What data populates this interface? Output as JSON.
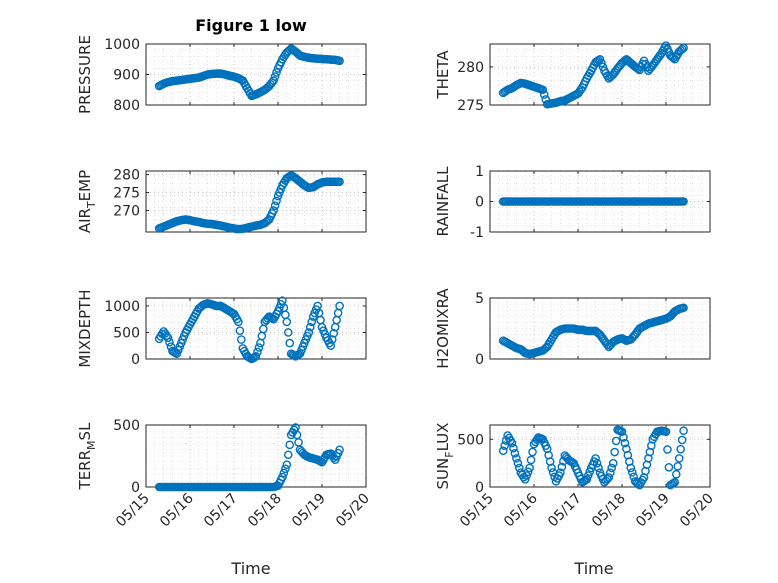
{
  "figure": {
    "title": "Figure 1 low",
    "xlabel": "Time",
    "xtick_labels": [
      "05/15",
      "05/16",
      "05/17",
      "05/18",
      "05/19",
      "05/20"
    ]
  },
  "chart_data": [
    {
      "type": "scatter",
      "ylabel": "PRESSURE",
      "ylabel_sub": "",
      "ylim": [
        800,
        1000
      ],
      "yticks": [
        800,
        900,
        1000
      ],
      "grid": true,
      "color": "#0072bd",
      "x": [
        0.3,
        0.4,
        0.5,
        0.6,
        0.7,
        0.8,
        0.9,
        1.0,
        1.1,
        1.2,
        1.3,
        1.4,
        1.5,
        1.6,
        1.7,
        1.8,
        1.9,
        2.0,
        2.1,
        2.2,
        2.3,
        2.4,
        2.5,
        2.6,
        2.7,
        2.8,
        2.9,
        3.0,
        3.1,
        3.2,
        3.3,
        3.4,
        3.5,
        3.6,
        3.7,
        3.8,
        3.9,
        4.0,
        4.1,
        4.2,
        4.3,
        4.4
      ],
      "y": [
        862,
        870,
        875,
        878,
        880,
        882,
        884,
        886,
        888,
        890,
        895,
        900,
        902,
        903,
        903,
        900,
        896,
        893,
        888,
        880,
        855,
        830,
        835,
        842,
        850,
        862,
        880,
        920,
        950,
        972,
        985,
        975,
        962,
        958,
        955,
        953,
        952,
        951,
        950,
        949,
        948,
        945
      ]
    },
    {
      "type": "scatter",
      "ylabel": "THETA",
      "ylabel_sub": "",
      "ylim": [
        275,
        283
      ],
      "yticks": [
        275,
        280
      ],
      "grid": true,
      "color": "#0072bd",
      "x": [
        0.3,
        0.4,
        0.5,
        0.6,
        0.7,
        0.8,
        0.9,
        1.0,
        1.1,
        1.2,
        1.3,
        1.4,
        1.5,
        1.6,
        1.7,
        1.8,
        1.9,
        2.0,
        2.1,
        2.2,
        2.3,
        2.4,
        2.5,
        2.6,
        2.7,
        2.8,
        2.9,
        3.0,
        3.1,
        3.2,
        3.3,
        3.4,
        3.5,
        3.6,
        3.7,
        3.8,
        3.9,
        4.0,
        4.1,
        4.2,
        4.3,
        4.4
      ],
      "y": [
        276.6,
        277.0,
        277.2,
        277.6,
        277.9,
        277.8,
        277.6,
        277.4,
        277.2,
        277.0,
        275.1,
        275.2,
        275.3,
        275.5,
        275.6,
        275.9,
        276.2,
        276.5,
        277.3,
        278.5,
        279.5,
        280.6,
        281.0,
        279.5,
        278.5,
        279.0,
        279.8,
        280.5,
        281.0,
        280.5,
        280.0,
        279.6,
        280.8,
        279.5,
        280.2,
        281.0,
        281.8,
        282.8,
        281.5,
        281.0,
        282.0,
        282.5
      ]
    },
    {
      "type": "scatter",
      "ylabel": "AIR",
      "ylabel_sub": "T",
      "ylabel_tail": "EMP",
      "ylim": [
        264,
        281
      ],
      "yticks": [
        270,
        275,
        280
      ],
      "grid": true,
      "color": "#0072bd",
      "x": [
        0.3,
        0.4,
        0.5,
        0.6,
        0.7,
        0.8,
        0.9,
        1.0,
        1.1,
        1.2,
        1.3,
        1.4,
        1.5,
        1.6,
        1.7,
        1.8,
        1.9,
        2.0,
        2.1,
        2.2,
        2.3,
        2.4,
        2.5,
        2.6,
        2.7,
        2.8,
        2.9,
        3.0,
        3.1,
        3.2,
        3.3,
        3.4,
        3.5,
        3.6,
        3.7,
        3.8,
        3.9,
        4.0,
        4.1,
        4.2,
        4.3,
        4.4
      ],
      "y": [
        265.0,
        265.5,
        266.0,
        266.5,
        267.0,
        267.3,
        267.5,
        267.3,
        267.0,
        266.8,
        266.5,
        266.3,
        266.2,
        266.0,
        265.8,
        265.5,
        265.2,
        265.0,
        264.8,
        264.9,
        265.2,
        265.5,
        265.8,
        266.0,
        266.5,
        267.5,
        270.0,
        274.0,
        277.0,
        279.0,
        279.8,
        279.0,
        278.0,
        277.0,
        276.3,
        276.5,
        277.3,
        277.8,
        278.0,
        278.0,
        278.0,
        278.0
      ]
    },
    {
      "type": "scatter",
      "ylabel": "RAINFALL",
      "ylabel_sub": "",
      "ylim": [
        -1,
        1
      ],
      "yticks": [
        -1,
        0,
        1
      ],
      "grid": true,
      "color": "#0072bd",
      "x": [
        0.3,
        0.4,
        0.5,
        0.6,
        0.7,
        0.8,
        0.9,
        1.0,
        1.1,
        1.2,
        1.3,
        1.4,
        1.5,
        1.6,
        1.7,
        1.8,
        1.9,
        2.0,
        2.1,
        2.2,
        2.3,
        2.4,
        2.5,
        2.6,
        2.7,
        2.8,
        2.9,
        3.0,
        3.1,
        3.2,
        3.3,
        3.4,
        3.5,
        3.6,
        3.7,
        3.8,
        3.9,
        4.0,
        4.1,
        4.2,
        4.3,
        4.4
      ],
      "y": [
        0,
        0,
        0,
        0,
        0,
        0,
        0,
        0,
        0,
        0,
        0,
        0,
        0,
        0,
        0,
        0,
        0,
        0,
        0,
        0,
        0,
        0,
        0,
        0,
        0,
        0,
        0,
        0,
        0,
        0,
        0,
        0,
        0,
        0,
        0,
        0,
        0,
        0,
        0,
        0,
        0,
        0
      ]
    },
    {
      "type": "scatter",
      "ylabel": "MIXDEPTH",
      "ylabel_sub": "",
      "ylim": [
        0,
        1150
      ],
      "yticks": [
        0,
        500,
        1000
      ],
      "grid": true,
      "color": "#0072bd",
      "x": [
        0.3,
        0.4,
        0.5,
        0.6,
        0.7,
        0.8,
        0.9,
        1.0,
        1.1,
        1.2,
        1.3,
        1.4,
        1.5,
        1.6,
        1.7,
        1.8,
        1.9,
        2.0,
        2.1,
        2.2,
        2.3,
        2.4,
        2.5,
        2.6,
        2.7,
        2.8,
        2.9,
        3.0,
        3.1,
        3.2,
        3.3,
        3.4,
        3.5,
        3.6,
        3.7,
        3.8,
        3.9,
        4.0,
        4.1,
        4.2,
        4.3,
        4.4
      ],
      "y": [
        380,
        520,
        400,
        150,
        100,
        300,
        500,
        650,
        800,
        950,
        1020,
        1050,
        1030,
        1000,
        1000,
        950,
        900,
        850,
        700,
        200,
        50,
        0,
        50,
        300,
        700,
        800,
        750,
        900,
        1100,
        700,
        100,
        50,
        100,
        300,
        500,
        800,
        1000,
        600,
        400,
        250,
        600,
        1000
      ]
    },
    {
      "type": "scatter",
      "ylabel": "H2OMIXRA",
      "ylabel_sub": "",
      "ylim": [
        0,
        5
      ],
      "yticks": [
        0,
        5
      ],
      "grid": true,
      "color": "#0072bd",
      "x": [
        0.3,
        0.4,
        0.5,
        0.6,
        0.7,
        0.8,
        0.9,
        1.0,
        1.1,
        1.2,
        1.3,
        1.4,
        1.5,
        1.6,
        1.7,
        1.8,
        1.9,
        2.0,
        2.1,
        2.2,
        2.3,
        2.4,
        2.5,
        2.6,
        2.7,
        2.8,
        2.9,
        3.0,
        3.1,
        3.2,
        3.3,
        3.4,
        3.5,
        3.6,
        3.7,
        3.8,
        3.9,
        4.0,
        4.1,
        4.2,
        4.3,
        4.4
      ],
      "y": [
        1.5,
        1.3,
        1.1,
        0.9,
        0.8,
        0.5,
        0.4,
        0.5,
        0.6,
        0.7,
        1.0,
        1.6,
        2.2,
        2.4,
        2.5,
        2.5,
        2.5,
        2.4,
        2.4,
        2.3,
        2.3,
        2.3,
        2.0,
        1.5,
        1.0,
        1.4,
        1.6,
        1.7,
        1.5,
        1.6,
        2.0,
        2.5,
        2.7,
        2.9,
        3.0,
        3.1,
        3.2,
        3.3,
        3.5,
        3.9,
        4.1,
        4.2
      ]
    },
    {
      "type": "scatter",
      "ylabel": "TERR",
      "ylabel_sub": "M",
      "ylabel_tail": "SL",
      "ylim": [
        0,
        500
      ],
      "yticks": [
        0,
        500
      ],
      "grid": true,
      "color": "#0072bd",
      "x": [
        0.3,
        0.4,
        0.5,
        0.6,
        0.7,
        0.8,
        0.9,
        1.0,
        1.1,
        1.2,
        1.3,
        1.4,
        1.5,
        1.6,
        1.7,
        1.8,
        1.9,
        2.0,
        2.1,
        2.2,
        2.3,
        2.4,
        2.5,
        2.6,
        2.7,
        2.8,
        2.9,
        3.0,
        3.1,
        3.2,
        3.3,
        3.4,
        3.5,
        3.6,
        3.7,
        3.8,
        3.9,
        4.0,
        4.1,
        4.2,
        4.3,
        4.4
      ],
      "y": [
        0,
        0,
        0,
        0,
        0,
        0,
        0,
        0,
        0,
        0,
        0,
        0,
        0,
        0,
        0,
        0,
        0,
        0,
        0,
        0,
        0,
        0,
        0,
        0,
        0,
        0,
        0,
        10,
        80,
        180,
        420,
        480,
        300,
        260,
        240,
        230,
        220,
        200,
        260,
        270,
        220,
        300
      ]
    },
    {
      "type": "scatter",
      "ylabel": "SUN",
      "ylabel_sub": "F",
      "ylabel_tail": "LUX",
      "ylim": [
        0,
        650
      ],
      "yticks": [
        0,
        500
      ],
      "grid": true,
      "color": "#0072bd",
      "x": [
        0.3,
        0.4,
        0.5,
        0.6,
        0.7,
        0.8,
        0.9,
        1.0,
        1.1,
        1.2,
        1.3,
        1.4,
        1.5,
        1.6,
        1.7,
        1.8,
        1.9,
        2.0,
        2.1,
        2.2,
        2.3,
        2.4,
        2.5,
        2.6,
        2.7,
        2.8,
        2.9,
        3.0,
        3.1,
        3.2,
        3.3,
        3.4,
        3.5,
        3.6,
        3.7,
        3.8,
        3.9,
        4.0,
        4.1,
        4.2,
        4.3,
        4.4
      ],
      "y": [
        380,
        540,
        460,
        300,
        150,
        80,
        200,
        450,
        520,
        500,
        400,
        200,
        60,
        150,
        330,
        280,
        250,
        150,
        50,
        80,
        200,
        300,
        150,
        50,
        100,
        250,
        600,
        580,
        400,
        200,
        60,
        20,
        100,
        300,
        500,
        580,
        590,
        580,
        20,
        50,
        300,
        590
      ]
    }
  ]
}
